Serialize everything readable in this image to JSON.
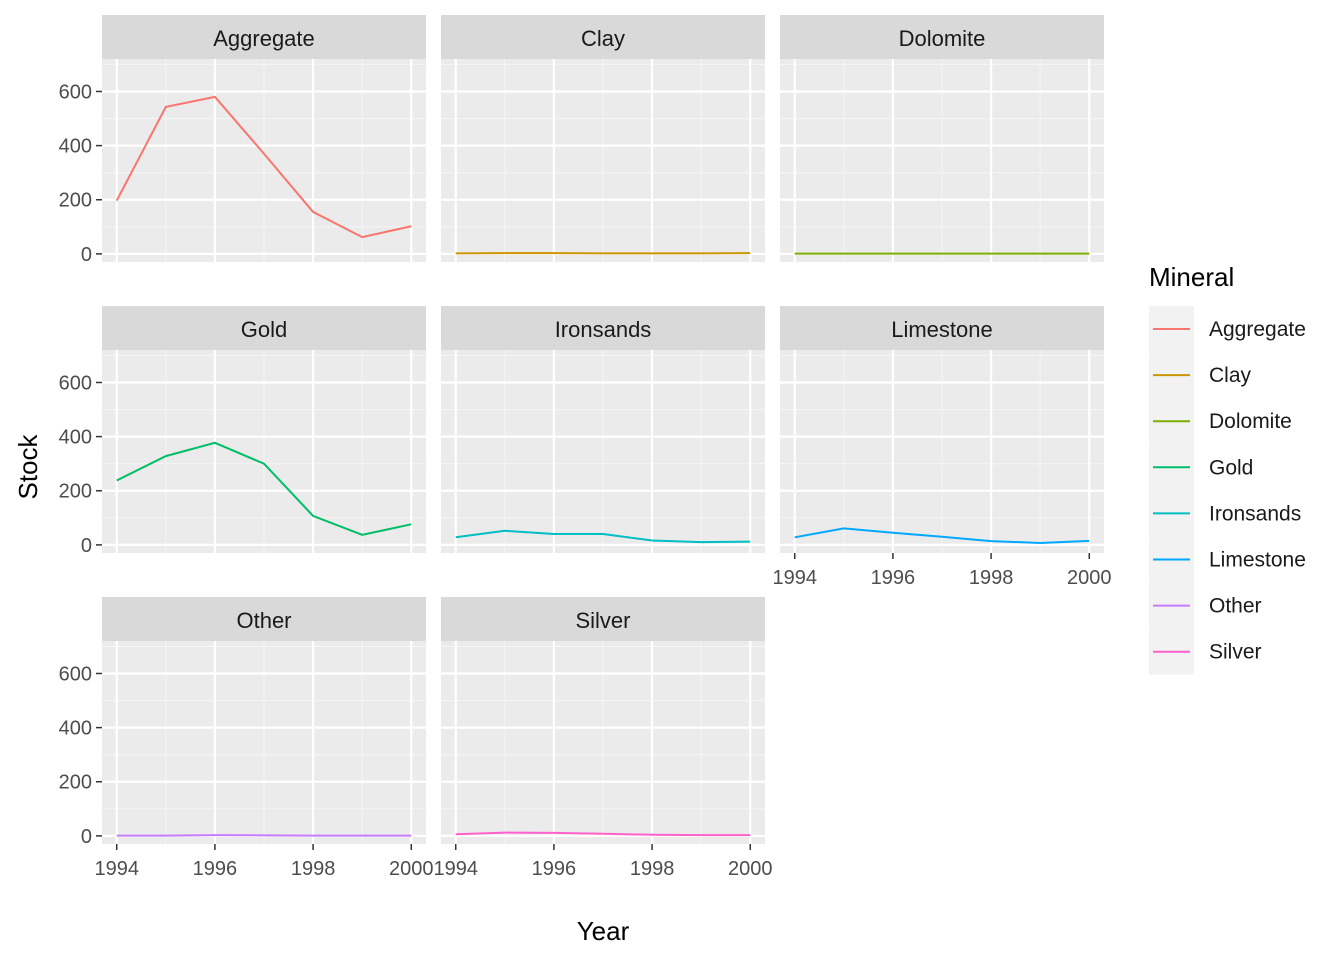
{
  "chart_data": {
    "type": "line",
    "facet_by": "Mineral",
    "xlabel": "Year",
    "ylabel": "Stock",
    "x_ticks": [
      1994,
      1996,
      1998,
      2000
    ],
    "y_ticks": [
      0,
      200,
      400,
      600
    ],
    "xlim": [
      1993.7,
      2000.3
    ],
    "ylim": [
      -30,
      720
    ],
    "grid": true,
    "legend": {
      "title": "Mineral",
      "position": "right"
    },
    "x": [
      1994,
      1995,
      1996,
      1997,
      1998,
      1999,
      2000
    ],
    "series": [
      {
        "name": "Aggregate",
        "color": "#F8766D",
        "values": [
          197,
          543,
          580,
          370,
          155,
          62,
          102
        ]
      },
      {
        "name": "Clay",
        "color": "#CD9600",
        "values": [
          2,
          3,
          3,
          2,
          2,
          2,
          3
        ]
      },
      {
        "name": "Dolomite",
        "color": "#7CAE00",
        "values": [
          1,
          1,
          1,
          1,
          1,
          1,
          1
        ]
      },
      {
        "name": "Gold",
        "color": "#00BE67",
        "values": [
          238,
          328,
          377,
          300,
          107,
          37,
          76
        ]
      },
      {
        "name": "Ironsands",
        "color": "#00BFC4",
        "values": [
          28,
          52,
          40,
          40,
          16,
          10,
          12
        ]
      },
      {
        "name": "Limestone",
        "color": "#00A9FF",
        "values": [
          28,
          61,
          45,
          30,
          14,
          7,
          15
        ]
      },
      {
        "name": "Other",
        "color": "#C77CFF",
        "values": [
          1,
          1,
          3,
          2,
          1,
          1,
          1
        ]
      },
      {
        "name": "Silver",
        "color": "#FF61CC",
        "values": [
          6,
          12,
          11,
          8,
          4,
          3,
          3
        ]
      }
    ]
  }
}
